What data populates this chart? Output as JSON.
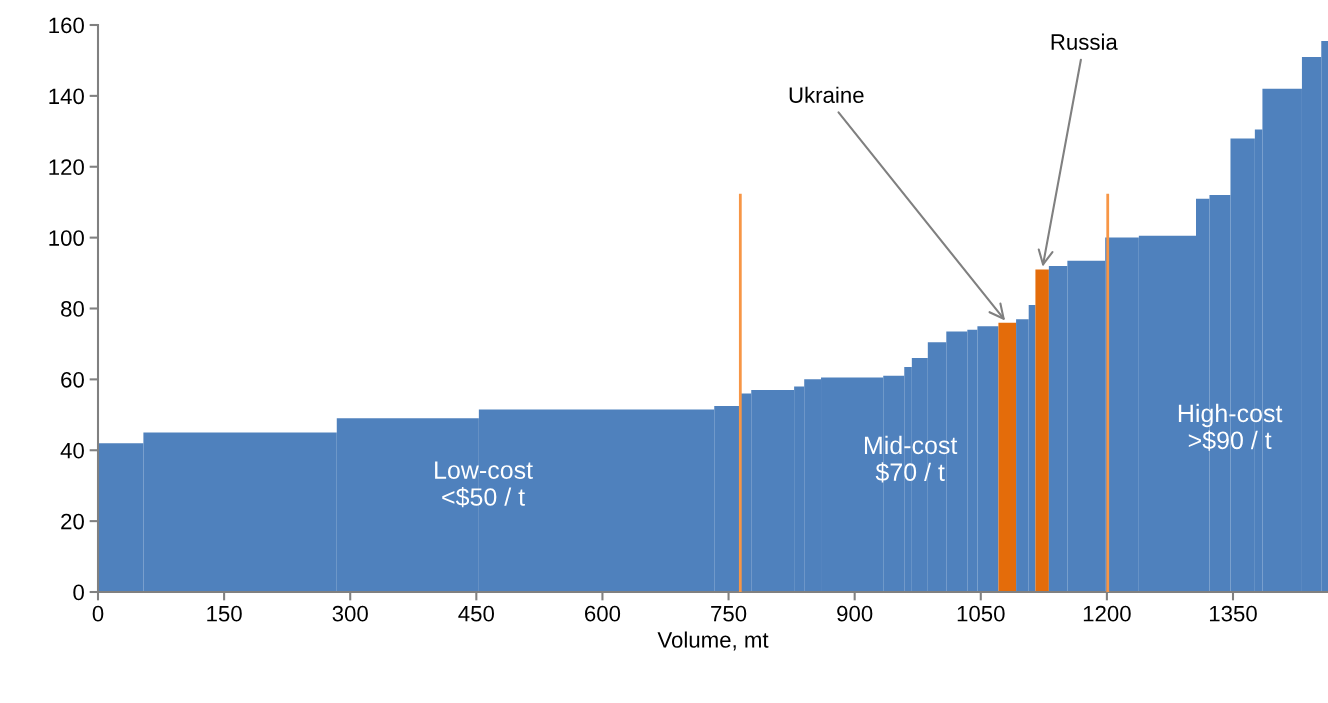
{
  "chart_data": {
    "type": "histogram",
    "xlabel": "Volume, mt",
    "bins": [
      0,
      54,
      284,
      453,
      733,
      764,
      777,
      828,
      840,
      860,
      934,
      959,
      968,
      987,
      1009,
      1034,
      1046,
      1071,
      1092,
      1107,
      1115,
      1131,
      1153,
      1198,
      1238,
      1306,
      1322,
      1347,
      1376,
      1385,
      1432,
      1455,
      1463
    ],
    "values": [
      42,
      45,
      49,
      51.5,
      52.5,
      56,
      57,
      58,
      60,
      60.5,
      61,
      63.5,
      66,
      70.5,
      73.5,
      74,
      75,
      76,
      77,
      81,
      91,
      92,
      93.5,
      100,
      100.5,
      111,
      112,
      128,
      130.5,
      142,
      151,
      155.5
    ],
    "colors": [
      "#4f81bd",
      "#4f81bd",
      "#4f81bd",
      "#4f81bd",
      "#4f81bd",
      "#4f81bd",
      "#4f81bd",
      "#4f81bd",
      "#4f81bd",
      "#4f81bd",
      "#4f81bd",
      "#4f81bd",
      "#4f81bd",
      "#4f81bd",
      "#4f81bd",
      "#4f81bd",
      "#4f81bd",
      "#e46c0a",
      "#4f81bd",
      "#4f81bd",
      "#e46c0a",
      "#4f81bd",
      "#4f81bd",
      "#4f81bd",
      "#4f81bd",
      "#4f81bd",
      "#4f81bd",
      "#4f81bd",
      "#4f81bd",
      "#4f81bd",
      "#4f81bd",
      "#4f81bd"
    ],
    "xlim": [
      0,
      1463
    ],
    "xticks": [
      0,
      150,
      300,
      450,
      600,
      750,
      900,
      1050,
      1200,
      1350
    ],
    "ylim": [
      0,
      160
    ],
    "yticks": [
      0,
      20,
      40,
      60,
      80,
      100,
      120,
      140,
      160
    ],
    "grid": false,
    "ref_lines": [
      {
        "axis": "x",
        "value": 764,
        "color": "#f79646"
      },
      {
        "axis": "x",
        "value": 1201,
        "color": "#f79646"
      }
    ],
    "annotations": [
      {
        "text": "Ukraine",
        "x": 1081,
        "y": 76
      },
      {
        "text": "Russia",
        "x": 1123,
        "y": 91
      },
      {
        "text": "Low-cost\n<$50 / t",
        "x": 458,
        "y": 30
      },
      {
        "text": "Mid-cost\n$70 / t",
        "x": 966,
        "y": 37
      },
      {
        "text": "High-cost\n>$90 / t",
        "x": 1346,
        "y": 46
      }
    ]
  }
}
